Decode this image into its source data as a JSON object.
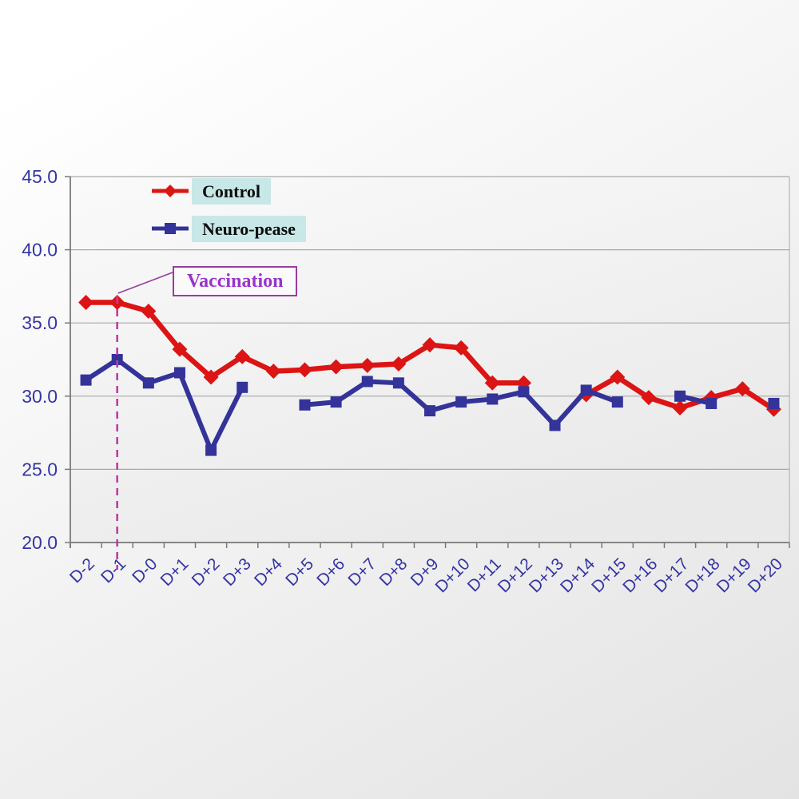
{
  "chart_data": {
    "type": "line",
    "title": "",
    "categories": [
      "D-2",
      "D-1",
      "D-0",
      "D+1",
      "D+2",
      "D+3",
      "D+4",
      "D+5",
      "D+6",
      "D+7",
      "D+8",
      "D+9",
      "D+10",
      "D+11",
      "D+12",
      "D+13",
      "D+14",
      "D+15",
      "D+16",
      "D+17",
      "D+18",
      "D+19",
      "D+20"
    ],
    "series": [
      {
        "name": "Control",
        "color": "#dc1414",
        "marker": "diamond",
        "values": [
          36.4,
          36.4,
          35.8,
          33.2,
          31.3,
          32.7,
          31.7,
          31.8,
          32.0,
          32.1,
          32.2,
          33.5,
          33.3,
          30.9,
          30.9,
          null,
          30.1,
          31.3,
          29.9,
          29.2,
          29.9,
          30.5,
          29.1
        ]
      },
      {
        "name": "Neuro-pease",
        "color": "#333399",
        "marker": "square",
        "values": [
          31.1,
          32.5,
          30.9,
          31.6,
          26.3,
          30.6,
          null,
          29.4,
          29.6,
          31.0,
          30.9,
          29.0,
          29.6,
          29.8,
          30.3,
          28.0,
          30.4,
          29.6,
          null,
          30.0,
          29.5,
          null,
          29.5
        ]
      }
    ],
    "ylim": [
      20.0,
      45.0
    ],
    "ytick_labels": [
      "45.0",
      "40.0",
      "35.0",
      "30.0",
      "25.0",
      "20.0"
    ],
    "xlabel": "",
    "ylabel": "",
    "grid": "horizontal",
    "legend_position": "top-left-inside",
    "annotation": {
      "label": "Vaccination",
      "category": "D-1",
      "text_color": "#9933cc",
      "border_color": "#993c9e",
      "line_color": "#c03ba8"
    }
  },
  "colors": {
    "axis_label": "#3434a4",
    "gridline": "#a8a8a8",
    "axis_line": "#7a7a7a",
    "plot_border_right": "#b4b4b4",
    "legend_bg": "#c8e7e7"
  }
}
